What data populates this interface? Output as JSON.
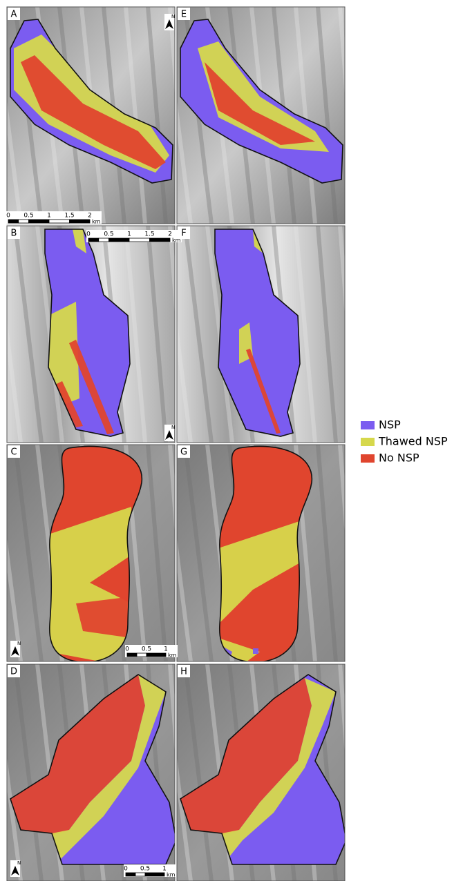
{
  "panels": [
    {
      "label": "A"
    },
    {
      "label": "E"
    },
    {
      "label": "B"
    },
    {
      "label": "F"
    },
    {
      "label": "C"
    },
    {
      "label": "G"
    },
    {
      "label": "D"
    },
    {
      "label": "H"
    }
  ],
  "scale_bars": [
    {
      "labels": [
        "0",
        "0.5",
        "1",
        "1.5",
        "2"
      ],
      "unit": "km"
    },
    {
      "labels": [
        "0",
        "0.5",
        "1",
        "1.5",
        "2"
      ],
      "unit": "km"
    },
    {
      "labels": [
        "0",
        "0.5",
        "1"
      ],
      "unit": "km"
    },
    {
      "labels": [
        "0",
        "0.5",
        "1"
      ],
      "unit": "km"
    }
  ],
  "north_arrows": [
    "N",
    "N",
    "N",
    "N"
  ],
  "legend": [
    {
      "name": "NSP",
      "color": "#7b5cf0"
    },
    {
      "name": "Thawed NSP",
      "color": "#d6d84c"
    },
    {
      "name": "No NSP",
      "color": "#e0452e"
    }
  ]
}
